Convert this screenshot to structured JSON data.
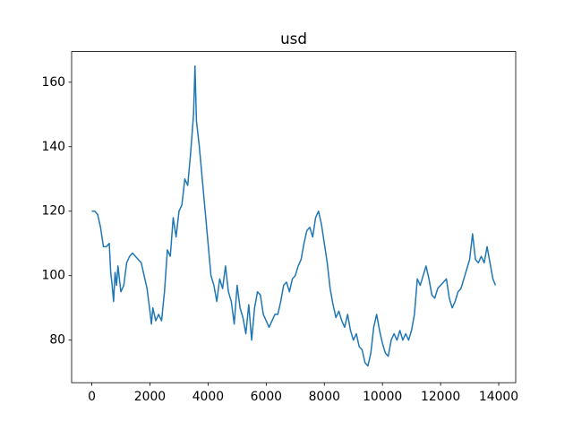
{
  "chart_data": {
    "type": "line",
    "title": "usd",
    "x": [
      0,
      100,
      200,
      300,
      400,
      500,
      600,
      650,
      700,
      750,
      800,
      850,
      900,
      950,
      1000,
      1100,
      1200,
      1300,
      1400,
      1500,
      1600,
      1700,
      1800,
      1900,
      2000,
      2050,
      2100,
      2200,
      2300,
      2400,
      2500,
      2600,
      2700,
      2800,
      2900,
      3000,
      3100,
      3200,
      3300,
      3400,
      3500,
      3550,
      3600,
      3700,
      3800,
      3900,
      4000,
      4100,
      4200,
      4300,
      4400,
      4500,
      4600,
      4700,
      4800,
      4900,
      5000,
      5100,
      5200,
      5300,
      5400,
      5500,
      5600,
      5700,
      5800,
      5900,
      6000,
      6100,
      6200,
      6300,
      6400,
      6500,
      6600,
      6700,
      6800,
      6900,
      7000,
      7100,
      7200,
      7300,
      7400,
      7500,
      7600,
      7700,
      7800,
      7900,
      8000,
      8100,
      8200,
      8300,
      8400,
      8500,
      8600,
      8700,
      8800,
      8900,
      9000,
      9100,
      9200,
      9300,
      9400,
      9500,
      9600,
      9700,
      9800,
      9900,
      10000,
      10100,
      10200,
      10300,
      10400,
      10500,
      10600,
      10700,
      10800,
      10900,
      11000,
      11100,
      11200,
      11300,
      11400,
      11500,
      11600,
      11700,
      11800,
      11900,
      12000,
      12100,
      12200,
      12300,
      12400,
      12500,
      12600,
      12700,
      12800,
      12900,
      13000,
      13100,
      13200,
      13300,
      13400,
      13500,
      13600,
      13700,
      13800,
      13890
    ],
    "series": [
      {
        "color": "#1f77b4",
        "values": [
          120,
          120,
          119,
          115,
          109,
          109,
          110,
          101,
          97,
          92,
          101,
          97,
          103,
          99,
          95,
          97,
          104,
          106,
          107,
          106,
          105,
          104,
          100,
          96,
          89,
          85,
          90,
          86,
          88,
          86,
          95,
          108,
          106,
          118,
          112,
          120,
          122,
          130,
          128,
          138,
          150,
          165,
          148,
          140,
          130,
          120,
          110,
          100,
          97,
          92,
          99,
          96,
          103,
          95,
          92,
          85,
          97,
          90,
          87,
          82,
          91,
          80,
          90,
          95,
          94,
          88,
          86,
          84,
          86,
          88,
          88,
          92,
          97,
          98,
          95,
          99,
          100,
          103,
          105,
          110,
          114,
          115,
          112,
          118,
          120,
          116,
          110,
          104,
          96,
          91,
          87,
          89,
          86,
          84,
          88,
          83,
          80,
          82,
          78,
          77,
          73,
          72,
          76,
          84,
          88,
          83,
          79,
          76,
          75,
          80,
          82,
          80,
          83,
          80,
          82,
          80,
          83,
          88,
          99,
          97,
          100,
          103,
          99,
          94,
          93,
          96,
          97,
          98,
          99,
          93,
          90,
          92,
          95,
          96,
          99,
          102,
          105,
          113,
          105,
          104,
          106,
          104,
          109,
          104,
          99,
          97
        ]
      }
    ],
    "xlim": [
      -694.5,
      14584.5
    ],
    "ylim": [
      66.8,
      169.5
    ],
    "xticks": [
      0,
      2000,
      4000,
      6000,
      8000,
      10000,
      12000,
      14000
    ],
    "yticks": [
      80,
      100,
      120,
      140,
      160
    ]
  }
}
